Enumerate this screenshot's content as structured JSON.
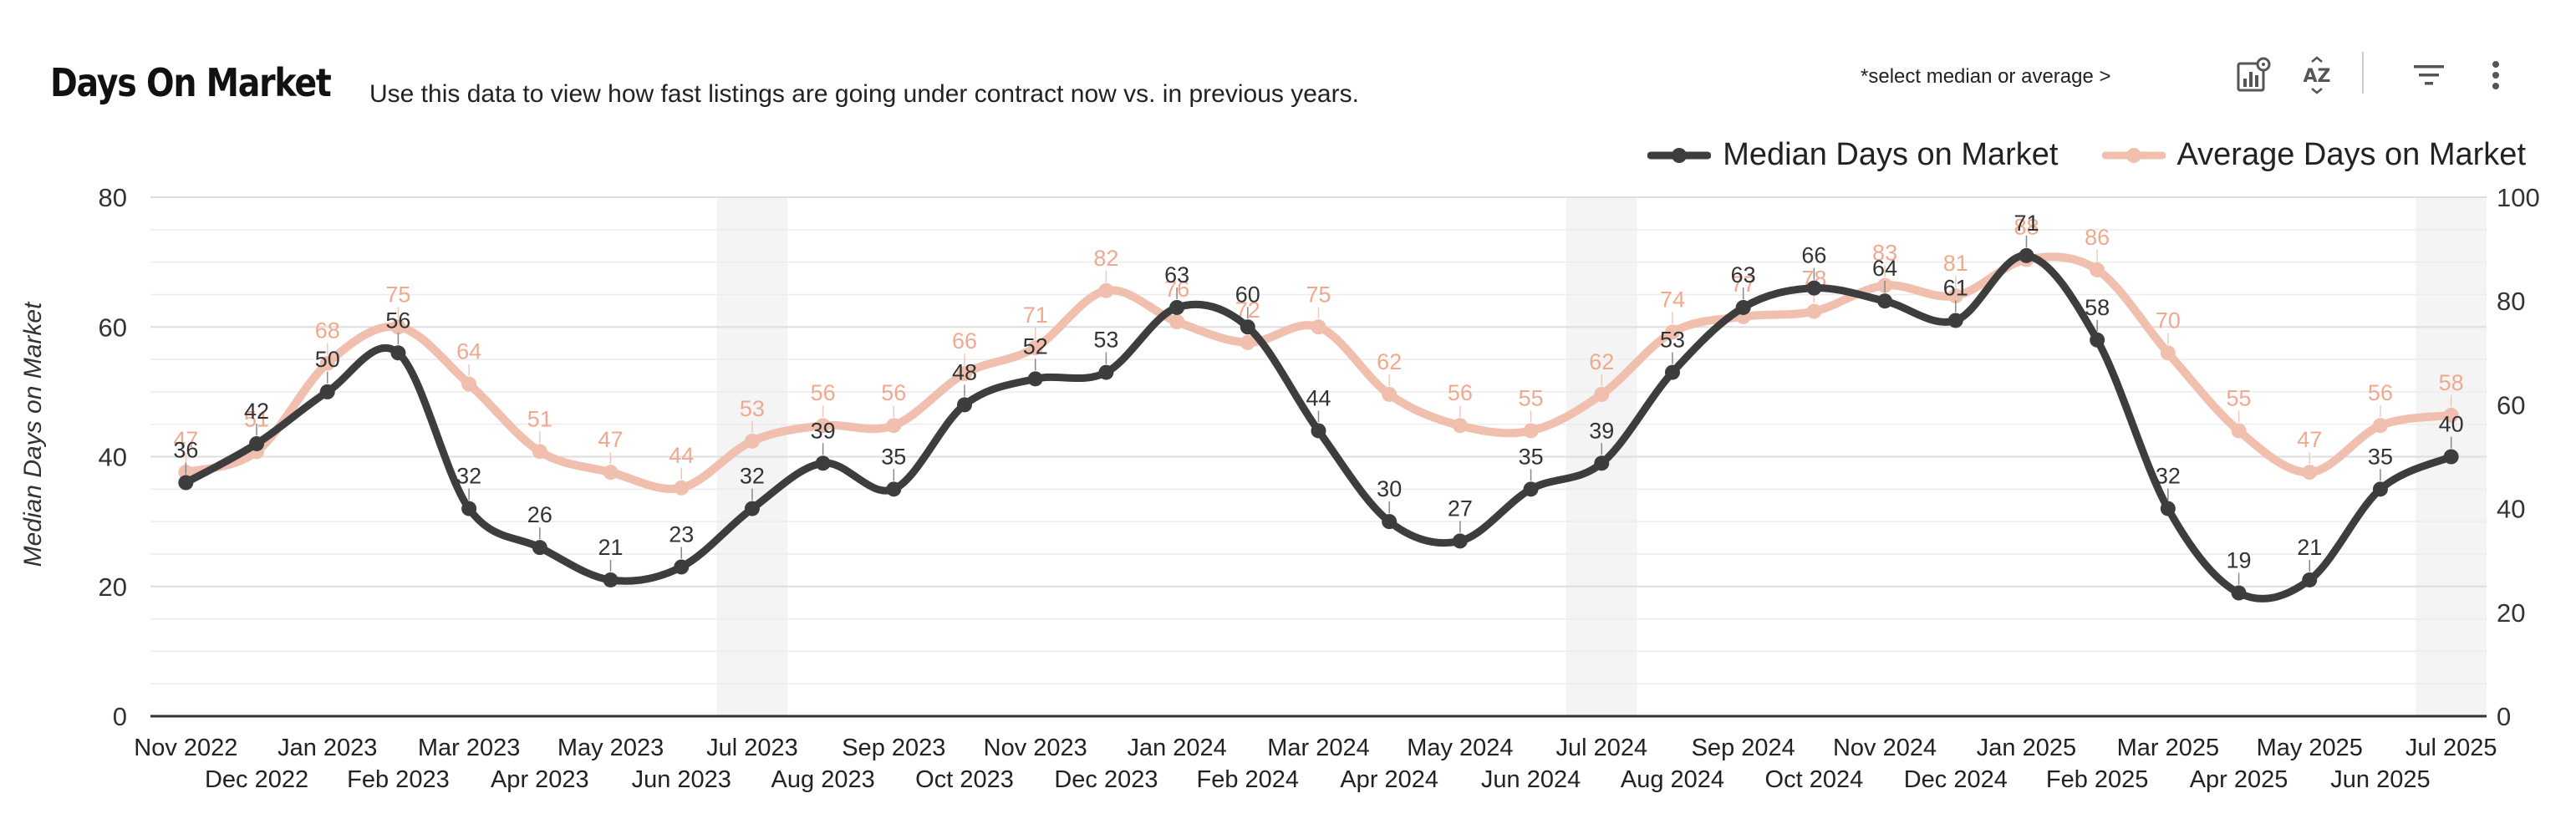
{
  "header": {
    "title": "Days On Market",
    "subtitle": "Use this data to view how fast listings are going under contract now vs. in previous years.",
    "select_hint": "*select median or average >"
  },
  "toolbar": {
    "icons": [
      "chart-settings-icon",
      "sort-az-icon",
      "filter-icon",
      "more-vert-icon"
    ],
    "sort_label": "AZ"
  },
  "chart_data": {
    "type": "line",
    "title": "Days On Market",
    "ylabel": "Median Days on Market",
    "y2label": "",
    "ylim": [
      0,
      80
    ],
    "y2lim": [
      0,
      100
    ],
    "yticks": [
      "0",
      "20",
      "40",
      "60",
      "80"
    ],
    "y2ticks": [
      "0",
      "20",
      "40",
      "60",
      "80",
      "100"
    ],
    "categories": [
      "Nov 2022",
      "Dec 2022",
      "Jan 2023",
      "Feb 2023",
      "Mar 2023",
      "Apr 2023",
      "May 2023",
      "Jun 2023",
      "Jul 2023",
      "Aug 2023",
      "Sep 2023",
      "Oct 2023",
      "Nov 2023",
      "Dec 2023",
      "Jan 2024",
      "Feb 2024",
      "Mar 2024",
      "Apr 2024",
      "May 2024",
      "Jun 2024",
      "Jul 2024",
      "Aug 2024",
      "Sep 2024",
      "Oct 2024",
      "Nov 2024",
      "Dec 2024",
      "Jan 2025",
      "Feb 2025",
      "Mar 2025",
      "Apr 2025",
      "May 2025",
      "Jun 2025",
      "Jul 2025"
    ],
    "highlight_categories": [
      "Jul 2023",
      "Jul 2024",
      "Jul 2025"
    ],
    "legend_position": "top-right",
    "series": [
      {
        "name": "Median Days on Market",
        "axis": "left",
        "color": "#3d3d3d",
        "values": [
          36,
          42,
          50,
          56,
          32,
          26,
          21,
          23,
          32,
          39,
          35,
          48,
          52,
          53,
          63,
          60,
          44,
          30,
          27,
          35,
          39,
          53,
          63,
          66,
          64,
          61,
          71,
          58,
          32,
          19,
          21,
          35,
          40
        ]
      },
      {
        "name": "Average Days on Market",
        "axis": "right",
        "color": "#f0bfae",
        "values": [
          47,
          51,
          68,
          75,
          64,
          51,
          47,
          44,
          53,
          56,
          56,
          66,
          71,
          82,
          76,
          72,
          75,
          62,
          56,
          55,
          62,
          74,
          77,
          78,
          83,
          81,
          88,
          86,
          70,
          55,
          47,
          56,
          58
        ]
      }
    ]
  }
}
